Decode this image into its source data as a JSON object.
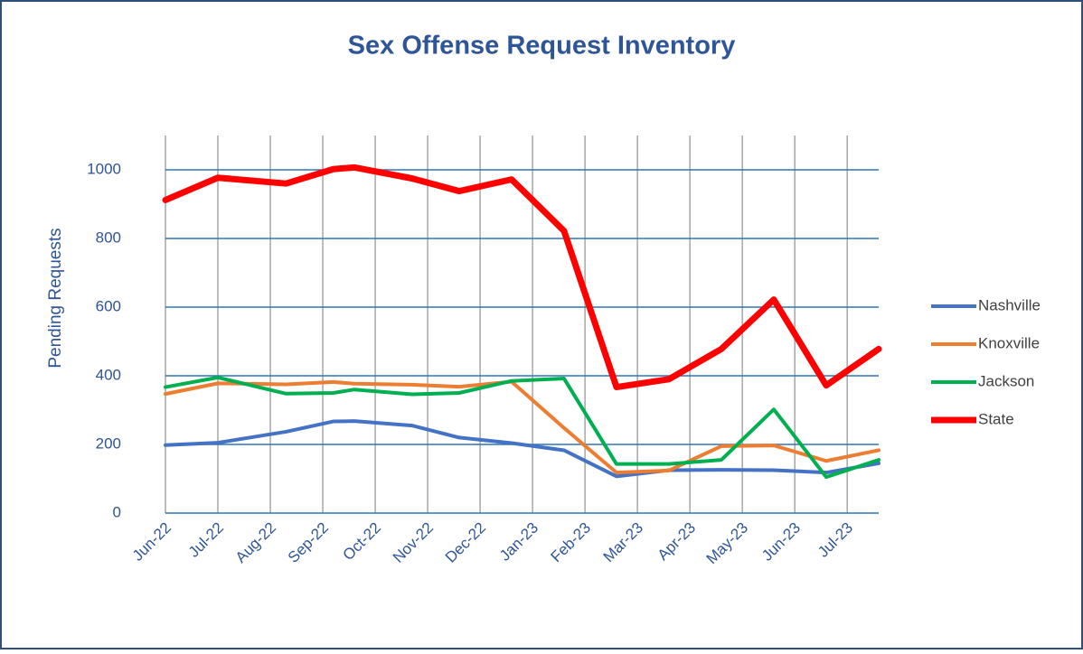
{
  "chart_data": {
    "type": "line",
    "title": "Sex Offense Request Inventory",
    "y_label": "Pending Requests",
    "x": [
      0,
      1,
      2.3,
      3.2,
      3.6,
      4.7,
      5.6,
      6.6,
      7.6,
      8.6,
      9.6,
      10.6,
      11.6,
      12.6,
      13.6
    ],
    "xlim": [
      0,
      13.6
    ],
    "xticks": [
      {
        "value": 0,
        "label": "Jun-22"
      },
      {
        "value": 1,
        "label": "Jul-22"
      },
      {
        "value": 2,
        "label": "Aug-22"
      },
      {
        "value": 3,
        "label": "Sep-22"
      },
      {
        "value": 4,
        "label": "Oct-22"
      },
      {
        "value": 5,
        "label": "Nov-22"
      },
      {
        "value": 6,
        "label": "Dec-22"
      },
      {
        "value": 7,
        "label": "Jan-23"
      },
      {
        "value": 8,
        "label": "Feb-23"
      },
      {
        "value": 9,
        "label": "Mar-23"
      },
      {
        "value": 10,
        "label": "Apr-23"
      },
      {
        "value": 11,
        "label": "May-23"
      },
      {
        "value": 12,
        "label": "Jun-23"
      },
      {
        "value": 13,
        "label": "Jul-23"
      }
    ],
    "ylim": [
      0,
      1100
    ],
    "yticks": [
      0,
      200,
      400,
      600,
      800,
      1000
    ],
    "grid": true,
    "legend": "right",
    "series": [
      {
        "name": "Nashville",
        "color": "#4472c4",
        "values": [
          198,
          205,
          237,
          267,
          268,
          255,
          220,
          204,
          183,
          107,
          125,
          126,
          125,
          118,
          145
        ]
      },
      {
        "name": "Knoxville",
        "color": "#ed7d31",
        "values": [
          347,
          378,
          375,
          382,
          377,
          374,
          368,
          383,
          248,
          118,
          124,
          195,
          197,
          152,
          183
        ]
      },
      {
        "name": "Jackson",
        "color": "#00b050",
        "values": [
          367,
          395,
          348,
          350,
          360,
          346,
          350,
          385,
          392,
          143,
          143,
          155,
          302,
          105,
          155
        ]
      },
      {
        "name": "State",
        "color": "#ff0000",
        "values": [
          912,
          977,
          960,
          1002,
          1007,
          975,
          938,
          972,
          822,
          367,
          390,
          478,
          622,
          372,
          478
        ]
      }
    ]
  }
}
